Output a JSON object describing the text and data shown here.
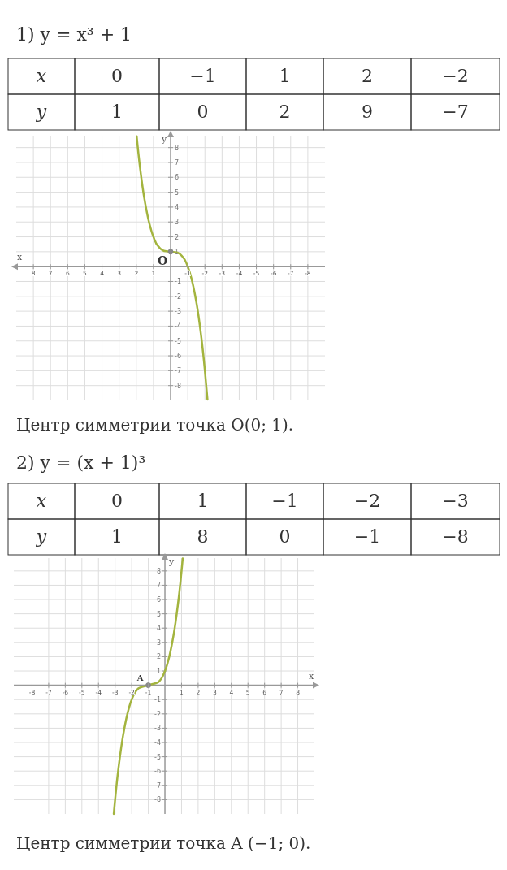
{
  "chart_data": [
    {
      "type": "other",
      "title": "1) y = x³ + 1",
      "y_categories": [
        "x",
        "y"
      ],
      "cell_labels": [
        [
          "0",
          "−1",
          "1",
          "2",
          "−2"
        ],
        [
          "1",
          "0",
          "2",
          "9",
          "−7"
        ]
      ]
    },
    {
      "type": "line",
      "xlabel": "x",
      "ylabel": "y",
      "xlim": [
        9,
        -9
      ],
      "ylim": [
        -9,
        8.8
      ],
      "xticks": [
        8,
        7,
        6,
        5,
        4,
        3,
        2,
        1,
        -1,
        -2,
        -3,
        -4,
        -5,
        -6,
        -7,
        -8
      ],
      "yticks": [
        8,
        7,
        6,
        5,
        4,
        3,
        2,
        1,
        -1,
        -2,
        -3,
        -4,
        -5,
        -6,
        -7,
        -8
      ],
      "grid": true,
      "marker": "none",
      "line_style": "solid",
      "series": [
        {
          "type": "line",
          "color": "#a3b43e",
          "x": [
            1.98,
            1.8,
            1.5,
            1.2,
            1,
            0.7,
            0.4,
            0,
            -0.4,
            -0.7,
            -1,
            -1.2,
            -1.5,
            -1.8,
            -2,
            -2.15
          ],
          "values": [
            8.76,
            6.83,
            4.38,
            2.73,
            2,
            1.34,
            1.06,
            1,
            0.94,
            0.66,
            0,
            -0.73,
            -2.38,
            -4.83,
            -7,
            -8.94
          ]
        },
        {
          "type": "scatter",
          "color": "#888888",
          "marker": "circle",
          "x": [
            0
          ],
          "values": [
            1
          ]
        }
      ],
      "annotations": [
        {
          "text": "O",
          "x": 0,
          "y": 1
        },
        "Центр симметрии точка O(0; 1)."
      ]
    },
    {
      "type": "other",
      "title": "2) y = (x + 1)³",
      "y_categories": [
        "x",
        "y"
      ],
      "cell_labels": [
        [
          "0",
          "1",
          "−1",
          "−2",
          "−3"
        ],
        [
          "1",
          "8",
          "0",
          "−1",
          "−8"
        ]
      ]
    },
    {
      "type": "line",
      "xlabel": "x",
      "ylabel": "y",
      "xlim": [
        -9.1,
        9
      ],
      "ylim": [
        -9,
        8.9
      ],
      "xticks": [
        -8,
        -7,
        -6,
        -5,
        -4,
        -3,
        -2,
        -1,
        1,
        2,
        3,
        4,
        5,
        6,
        7,
        8
      ],
      "yticks": [
        8,
        7,
        6,
        5,
        4,
        3,
        2,
        1,
        -1,
        -2,
        -3,
        -4,
        -5,
        -6,
        -7,
        -8
      ],
      "grid": true,
      "marker": "none",
      "line_style": "solid",
      "series": [
        {
          "type": "line",
          "color": "#a3b43e",
          "x": [
            -3.08,
            -2.8,
            -2.5,
            -2.2,
            -2,
            -1.6,
            -1,
            -0.4,
            0,
            0.2,
            0.5,
            0.8,
            1.07
          ],
          "values": [
            -9,
            -5.83,
            -3.38,
            -1.73,
            -1,
            -0.22,
            0,
            0.22,
            1,
            1.73,
            3.38,
            5.83,
            8.87
          ]
        },
        {
          "type": "scatter",
          "color": "#888888",
          "marker": "circle",
          "x": [
            -1
          ],
          "values": [
            0
          ]
        }
      ],
      "annotations": [
        {
          "text": "A",
          "x": -1,
          "y": 0
        },
        "Центр симметрии точка A (−1; 0)."
      ]
    }
  ]
}
